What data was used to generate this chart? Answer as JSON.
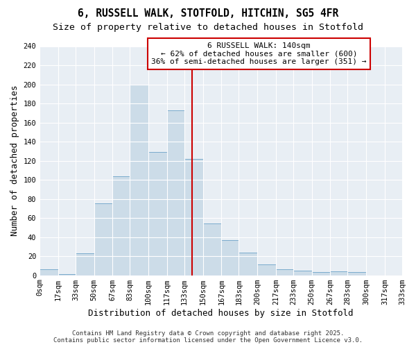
{
  "title": "6, RUSSELL WALK, STOTFOLD, HITCHIN, SG5 4FR",
  "subtitle": "Size of property relative to detached houses in Stotfold",
  "xlabel": "Distribution of detached houses by size in Stotfold",
  "ylabel": "Number of detached properties",
  "bin_edges": [
    0,
    17,
    33,
    50,
    67,
    83,
    100,
    117,
    133,
    150,
    167,
    183,
    200,
    217,
    233,
    250,
    267,
    283,
    300,
    317,
    333
  ],
  "bin_labels": [
    "0sqm",
    "17sqm",
    "33sqm",
    "50sqm",
    "67sqm",
    "83sqm",
    "100sqm",
    "117sqm",
    "133sqm",
    "150sqm",
    "167sqm",
    "183sqm",
    "200sqm",
    "217sqm",
    "233sqm",
    "250sqm",
    "267sqm",
    "283sqm",
    "300sqm",
    "317sqm",
    "333sqm"
  ],
  "counts": [
    6,
    1,
    23,
    75,
    104,
    200,
    129,
    173,
    122,
    54,
    37,
    24,
    11,
    6,
    5,
    3,
    4,
    3,
    0,
    0
  ],
  "bar_fill": "#ccdce8",
  "bar_edge": "#7aabcc",
  "vline_x": 140,
  "vline_color": "#cc0000",
  "annotation_title": "6 RUSSELL WALK: 140sqm",
  "annotation_line1": "← 62% of detached houses are smaller (600)",
  "annotation_line2": "36% of semi-detached houses are larger (351) →",
  "annotation_box_edge": "#cc0000",
  "annotation_box_fill": "white",
  "ylim": [
    0,
    240
  ],
  "yticks": [
    0,
    20,
    40,
    60,
    80,
    100,
    120,
    140,
    160,
    180,
    200,
    220,
    240
  ],
  "footer1": "Contains HM Land Registry data © Crown copyright and database right 2025.",
  "footer2": "Contains public sector information licensed under the Open Government Licence v3.0.",
  "bg_color": "#ffffff",
  "plot_bg_color": "#e8eef4",
  "grid_color": "#ffffff",
  "title_fontsize": 10.5,
  "subtitle_fontsize": 9.5,
  "label_fontsize": 9,
  "tick_fontsize": 7.5,
  "annotation_fontsize": 8,
  "footer_fontsize": 6.5
}
